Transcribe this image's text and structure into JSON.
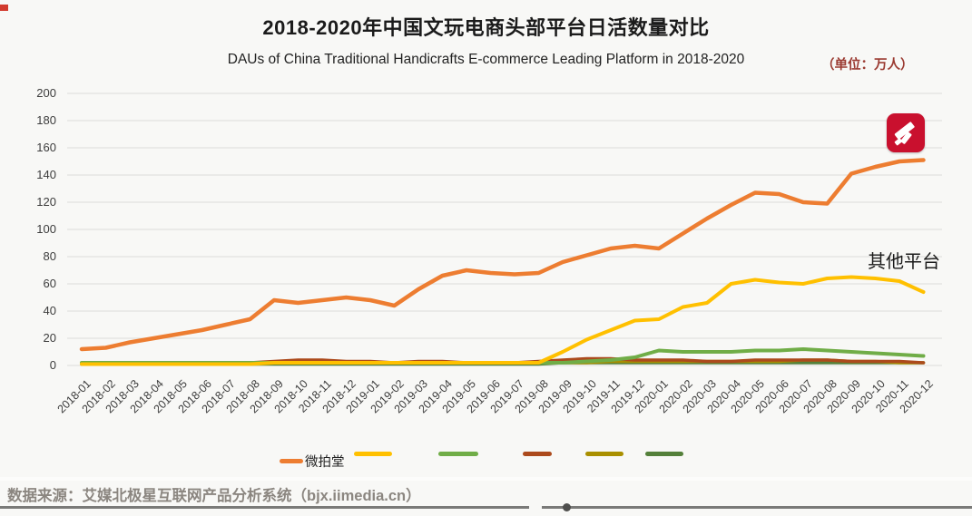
{
  "title": "2018-2020年中国文玩电商头部平台日活数量对比",
  "subtitle": "DAUs of China Traditional Handicrafts E-commerce Leading Platform in 2018-2020",
  "unit_label": "（单位：万人）",
  "annotation": "其他平台",
  "source": "数据来源：艾媒北极星互联网产品分析系统（bjx.iimedia.cn）",
  "logo": {
    "name": "weipaitang-gavel-logo",
    "background": "#c9102e"
  },
  "legend": [
    {
      "label": "微拍堂",
      "color": "#ED7D31"
    },
    {
      "label": "",
      "color": "#FFC000"
    },
    {
      "label": "",
      "color": "#70AD47"
    },
    {
      "label": "",
      "color": "#AC4A1C"
    },
    {
      "label": "",
      "color": "#A98F00"
    },
    {
      "label": "",
      "color": "#54803A"
    }
  ],
  "chart_data": {
    "type": "line",
    "title": "2018-2020年中国文玩电商头部平台日活数量对比",
    "ylabel": "万人",
    "ylim": [
      0,
      200
    ],
    "yticks": [
      0,
      20,
      40,
      60,
      80,
      100,
      120,
      140,
      160,
      180,
      200
    ],
    "grid": true,
    "legend_position": "bottom",
    "x": [
      "2018-01",
      "2018-02",
      "2018-03",
      "2018-04",
      "2018-05",
      "2018-06",
      "2018-07",
      "2018-08",
      "2018-09",
      "2018-10",
      "2018-11",
      "2018-12",
      "2019-01",
      "2019-02",
      "2019-03",
      "2019-04",
      "2019-05",
      "2019-06",
      "2019-07",
      "2019-08",
      "2019-09",
      "2019-10",
      "2019-11",
      "2019-12",
      "2020-01",
      "2020-02",
      "2020-03",
      "2020-04",
      "2020-05",
      "2020-06",
      "2020-07",
      "2020-08",
      "2020-09",
      "2020-10",
      "2020-11",
      "2020-12"
    ],
    "series": [
      {
        "name": "微拍堂",
        "color": "#ED7D31",
        "width": 4.5,
        "values": [
          12,
          13,
          17,
          20,
          23,
          26,
          30,
          34,
          48,
          46,
          48,
          50,
          48,
          44,
          56,
          66,
          70,
          68,
          67,
          68,
          76,
          81,
          86,
          88,
          86,
          97,
          108,
          118,
          127,
          126,
          120,
          119,
          141,
          146,
          150,
          151
        ]
      },
      {
        "name": "",
        "color": "#FFC000",
        "width": 4,
        "values": [
          1,
          1,
          1,
          1,
          1,
          1,
          1,
          1,
          2,
          2,
          2,
          2,
          2,
          2,
          2,
          2,
          2,
          2,
          2,
          2,
          10,
          19,
          26,
          33,
          34,
          43,
          46,
          60,
          63,
          61,
          60,
          64,
          65,
          64,
          62,
          54
        ]
      },
      {
        "name": "",
        "color": "#70AD47",
        "width": 4,
        "values": [
          2,
          2,
          2,
          2,
          2,
          2,
          2,
          2,
          2,
          2,
          2,
          2,
          2,
          2,
          2,
          2,
          2,
          2,
          2,
          2,
          2,
          3,
          4,
          6,
          11,
          10,
          10,
          10,
          11,
          11,
          12,
          11,
          10,
          9,
          8,
          7
        ]
      },
      {
        "name": "",
        "color": "#AC4A1C",
        "width": 3.5,
        "values": [
          1,
          1,
          1,
          2,
          2,
          2,
          2,
          2,
          3,
          4,
          4,
          3,
          3,
          2,
          3,
          3,
          2,
          2,
          2,
          3,
          4,
          5,
          5,
          4,
          4,
          4,
          3,
          3,
          4,
          4,
          4,
          4,
          3,
          3,
          3,
          2
        ]
      },
      {
        "name": "",
        "color": "#A98F00",
        "width": 3.5,
        "values": [
          1,
          1,
          1,
          1,
          1,
          1,
          1,
          1,
          2,
          2,
          2,
          2,
          2,
          2,
          2,
          2,
          2,
          2,
          2,
          2,
          2,
          2,
          3,
          3,
          3,
          3,
          3,
          3,
          3,
          3,
          4,
          4,
          3,
          3,
          2,
          2
        ]
      },
      {
        "name": "",
        "color": "#54803A",
        "width": 3.5,
        "values": [
          1,
          1,
          1,
          1,
          1,
          1,
          1,
          1,
          1,
          1,
          1,
          1,
          1,
          1,
          1,
          1,
          1,
          1,
          1,
          1,
          2,
          2,
          2,
          2,
          2,
          2,
          2,
          2,
          2,
          2,
          2,
          2,
          2,
          2,
          2,
          2
        ]
      }
    ]
  }
}
